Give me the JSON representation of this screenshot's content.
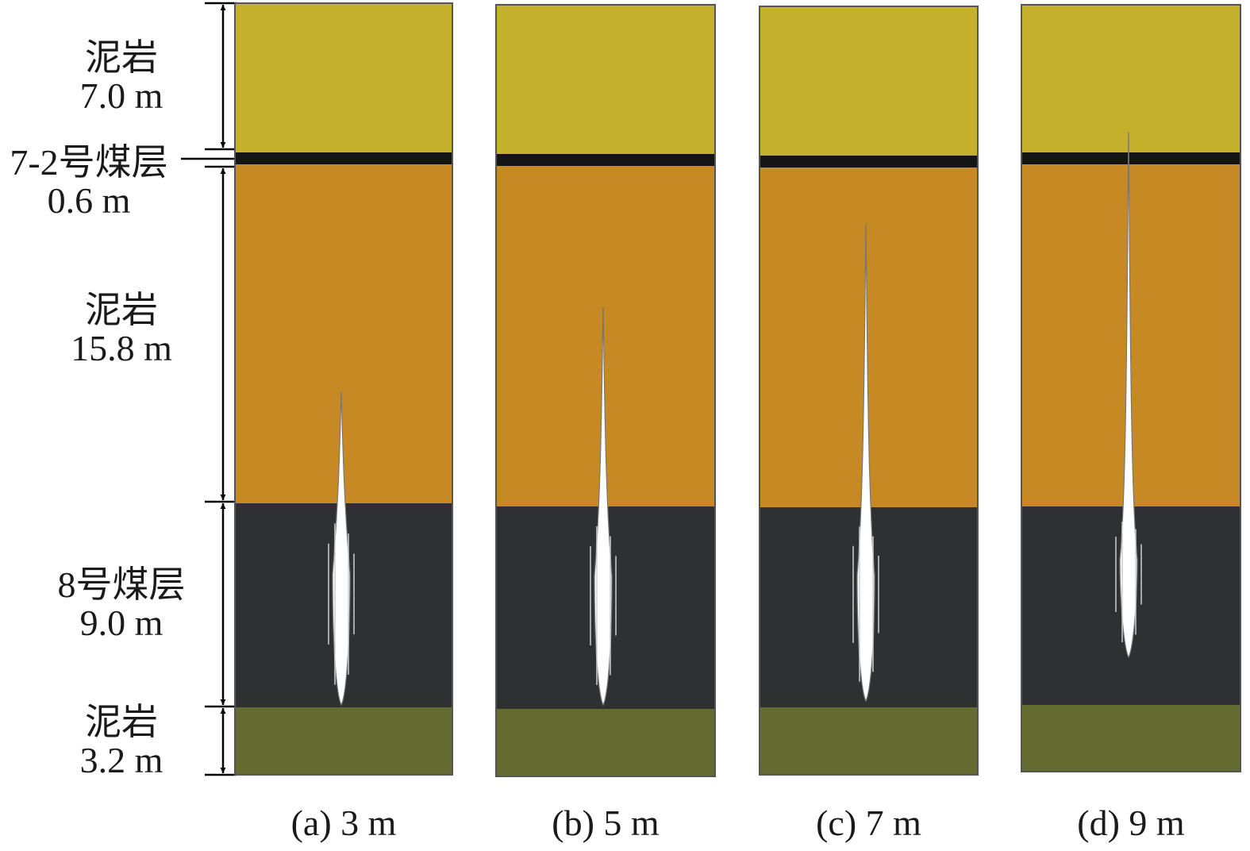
{
  "layers": [
    {
      "name": "泥岩",
      "thickness": "7.0 m",
      "color": "#c4b02a"
    },
    {
      "name": "7-2号煤层",
      "thickness": "0.6 m",
      "color": "#151515"
    },
    {
      "name": "泥岩",
      "thickness": "15.8 m",
      "color": "#c68923"
    },
    {
      "name": "8号煤层",
      "thickness": "9.0 m",
      "color": "#2f3032"
    },
    {
      "name": "泥岩",
      "thickness": "3.2 m",
      "color": "#646b30"
    }
  ],
  "panels": [
    {
      "caption": "(a) 3 m",
      "crack_height_m": 3
    },
    {
      "caption": "(b) 5 m",
      "crack_height_m": 5
    },
    {
      "caption": "(c) 7 m",
      "crack_height_m": 7
    },
    {
      "caption": "(d) 9 m",
      "crack_height_m": 9
    }
  ],
  "colors": {
    "border": "#555555",
    "crack": "#ffffff",
    "arrow": "#000000"
  }
}
